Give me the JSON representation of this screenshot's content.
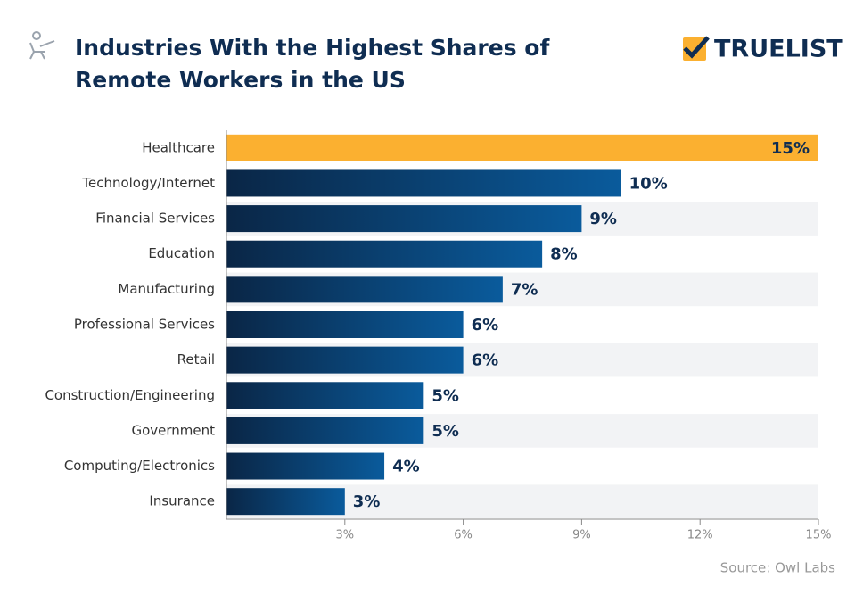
{
  "chart_data": {
    "type": "hbar",
    "title": "Industries With the Highest Shares of Remote Workers in the US",
    "brand": "TRUELIST",
    "source": "Source: Owl Labs",
    "categories": [
      "Healthcare",
      "Technology/Internet",
      "Financial Services",
      "Education",
      "Manufacturing",
      "Professional Services",
      "Retail",
      "Construction/Engineering",
      "Government",
      "Computing/Electronics",
      "Insurance"
    ],
    "values": [
      15,
      10,
      9,
      8,
      7,
      6,
      6,
      5,
      5,
      4,
      3
    ],
    "value_labels": [
      "15%",
      "10%",
      "9%",
      "8%",
      "7%",
      "6%",
      "6%",
      "5%",
      "5%",
      "4%",
      "3%"
    ],
    "colors": [
      "#fbb030",
      "#0c3763",
      "#0c3763",
      "#0c3763",
      "#0c3763",
      "#0c3763",
      "#0c3763",
      "#0c3763",
      "#0c3763",
      "#0c3763",
      "#0c3763"
    ],
    "xlim": [
      0,
      15
    ],
    "xticks": [
      {
        "value": 3,
        "label": "3%"
      },
      {
        "value": 6,
        "label": "6%"
      },
      {
        "value": 9,
        "label": "9%"
      },
      {
        "value": 12,
        "label": "12%"
      },
      {
        "value": 15,
        "label": "15%"
      }
    ]
  }
}
